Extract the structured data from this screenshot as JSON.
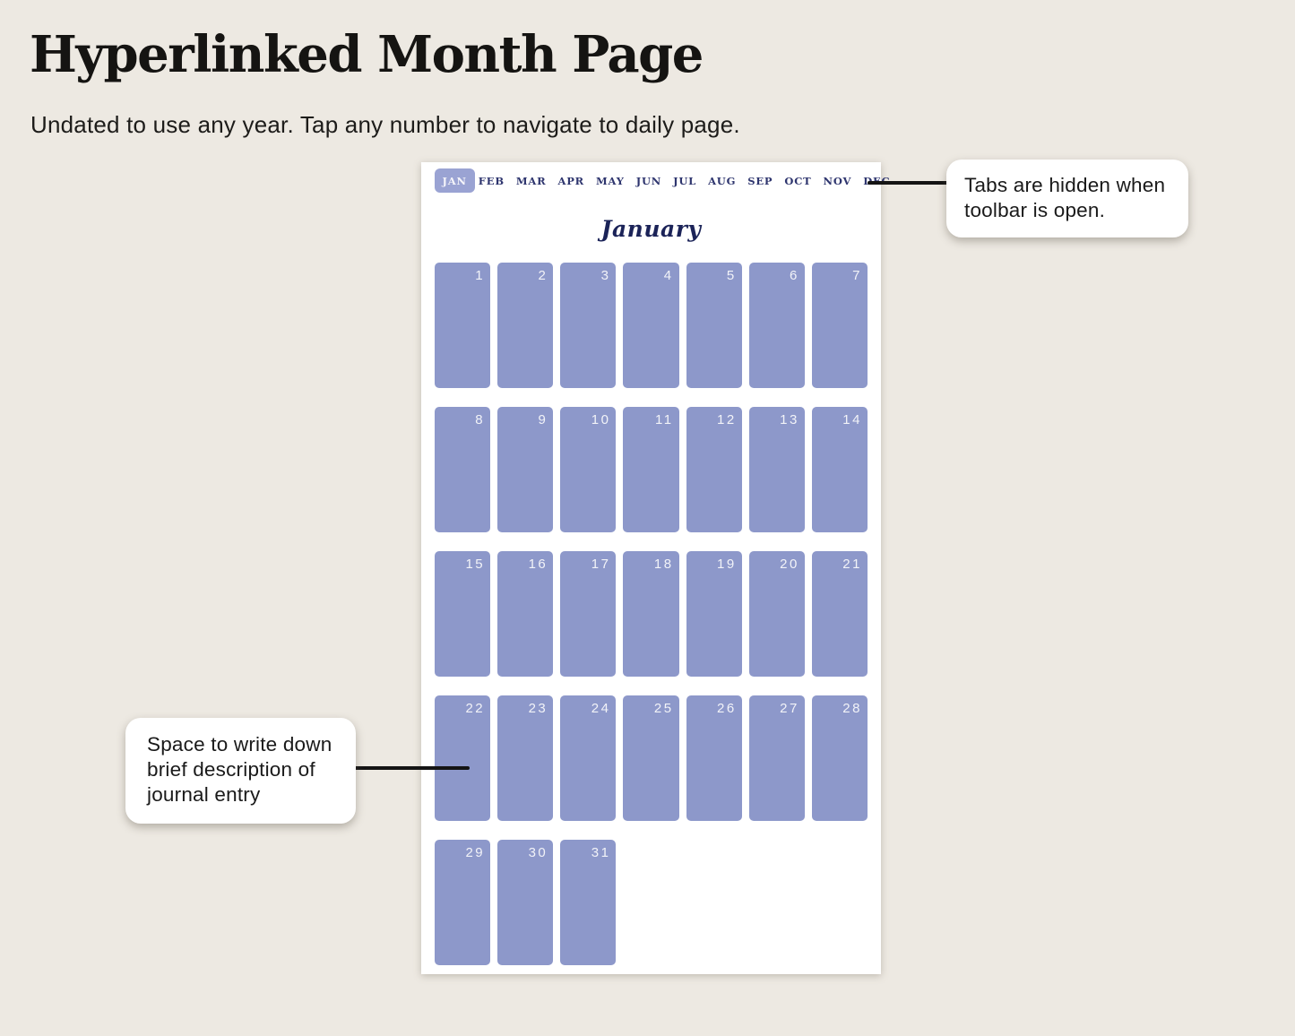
{
  "page": {
    "title": "Hyperlinked Month Page",
    "subtitle": "Undated to use any year. Tap any number to navigate to daily page."
  },
  "calendar": {
    "month_title": "January",
    "tabs": [
      {
        "label": "JAN",
        "active": true
      },
      {
        "label": "FEB",
        "active": false
      },
      {
        "label": "MAR",
        "active": false
      },
      {
        "label": "APR",
        "active": false
      },
      {
        "label": "MAY",
        "active": false
      },
      {
        "label": "JUN",
        "active": false
      },
      {
        "label": "JUL",
        "active": false
      },
      {
        "label": "AUG",
        "active": false
      },
      {
        "label": "SEP",
        "active": false
      },
      {
        "label": "OCT",
        "active": false
      },
      {
        "label": "NOV",
        "active": false
      },
      {
        "label": "DEC",
        "active": false
      }
    ],
    "days": [
      1,
      2,
      3,
      4,
      5,
      6,
      7,
      8,
      9,
      10,
      11,
      12,
      13,
      14,
      15,
      16,
      17,
      18,
      19,
      20,
      21,
      22,
      23,
      24,
      25,
      26,
      27,
      28,
      29,
      30,
      31
    ]
  },
  "callouts": {
    "tabs_note": "Tabs are hidden when toolbar is open.",
    "space_note": "Space to write down brief description of journal entry"
  },
  "colors": {
    "background": "#EDE9E2",
    "panel": "#FFFFFF",
    "day_cell": "#8D98CA",
    "active_tab": "#9AA3D3",
    "tab_text": "#2E356E",
    "month_title_text": "#1B2358",
    "day_number_text": "#F2F3F8",
    "connector": "#141414"
  }
}
